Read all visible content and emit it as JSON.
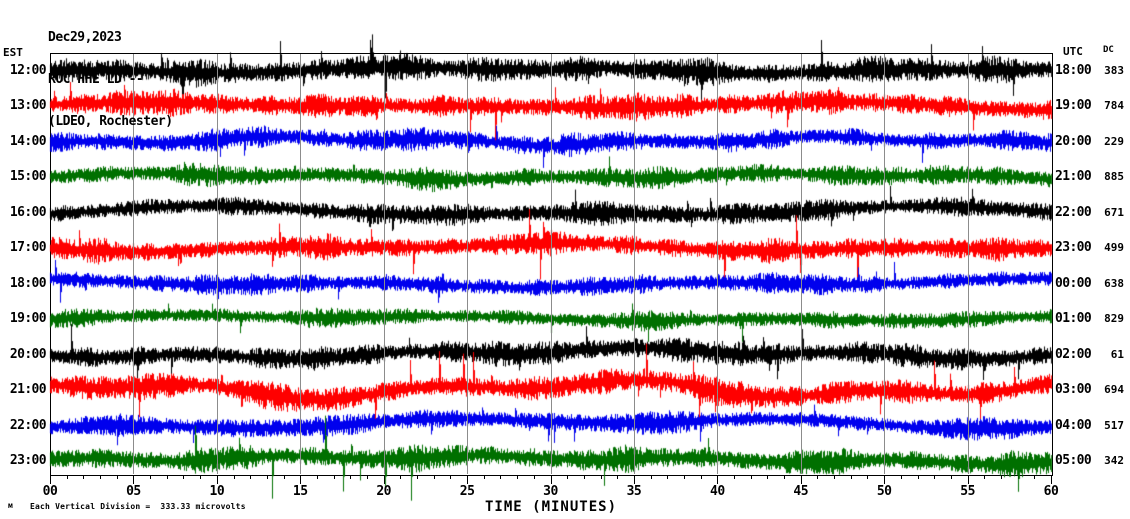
{
  "header": {
    "date": "Dec29,2023",
    "station": "ROC HHE LD --",
    "location": "(LDEO, Rochester)"
  },
  "left_axis": {
    "label": "EST"
  },
  "right_axis": {
    "label": "UTC",
    "dc_label": "DC"
  },
  "x_axis": {
    "title": "TIME (MINUTES)",
    "tick_labels": [
      "00",
      "05",
      "10",
      "15",
      "20",
      "25",
      "30",
      "35",
      "40",
      "45",
      "50",
      "55",
      "60"
    ],
    "minor_tick_every_min": 1,
    "major_tick_every_min": 5
  },
  "footer": {
    "caption": "Each Vertical Division =  333.33 microvolts",
    "corner_mark": "м"
  },
  "colors": {
    "black": "#000000",
    "red": "#ff0000",
    "blue": "#0000ee",
    "green": "#007000",
    "grid": "#8c8c8c",
    "frame": "#000000"
  },
  "chart_data": {
    "type": "line",
    "subtype": "seismogram-helicorder",
    "x_range_minutes": [
      0,
      60
    ],
    "grid_minutes": [
      5,
      10,
      15,
      20,
      25,
      30,
      35,
      40,
      45,
      50,
      55
    ],
    "vertical_division_microvolts": 333.33,
    "traces": [
      {
        "est": "12:00",
        "utc": "18:00",
        "dc": "383",
        "color": "black",
        "amp": 16,
        "spike_prob": 0.02,
        "spike_mag": 24,
        "wander": 3,
        "down_bias": 0.5,
        "seed": 11
      },
      {
        "est": "13:00",
        "utc": "19:00",
        "dc": "784",
        "color": "red",
        "amp": 15,
        "spike_prob": 0.014,
        "spike_mag": 20,
        "wander": 4,
        "down_bias": 0.5,
        "seed": 22
      },
      {
        "est": "14:00",
        "utc": "20:00",
        "dc": "229",
        "color": "blue",
        "amp": 13,
        "spike_prob": 0.01,
        "spike_mag": 15,
        "wander": 4,
        "down_bias": 0.5,
        "seed": 33
      },
      {
        "est": "15:00",
        "utc": "21:00",
        "dc": "885",
        "color": "green",
        "amp": 13,
        "spike_prob": 0.008,
        "spike_mag": 13,
        "wander": 3,
        "down_bias": 0.5,
        "seed": 44
      },
      {
        "est": "16:00",
        "utc": "22:00",
        "dc": "671",
        "color": "black",
        "amp": 13,
        "spike_prob": 0.01,
        "spike_mag": 16,
        "wander": 5,
        "down_bias": 0.5,
        "seed": 55
      },
      {
        "est": "17:00",
        "utc": "23:00",
        "dc": "499",
        "color": "red",
        "amp": 14,
        "spike_prob": 0.014,
        "spike_mag": 22,
        "wander": 4,
        "down_bias": 0.5,
        "seed": 66
      },
      {
        "est": "18:00",
        "utc": "00:00",
        "dc": "638",
        "color": "blue",
        "amp": 12,
        "spike_prob": 0.01,
        "spike_mag": 15,
        "wander": 4,
        "down_bias": 0.5,
        "seed": 77
      },
      {
        "est": "19:00",
        "utc": "01:00",
        "dc": "829",
        "color": "green",
        "amp": 11,
        "spike_prob": 0.008,
        "spike_mag": 13,
        "wander": 3,
        "down_bias": 0.5,
        "seed": 88
      },
      {
        "est": "20:00",
        "utc": "02:00",
        "dc": "61",
        "color": "black",
        "amp": 14,
        "spike_prob": 0.014,
        "spike_mag": 20,
        "wander": 5,
        "down_bias": 0.5,
        "seed": 99
      },
      {
        "est": "21:00",
        "utc": "03:00",
        "dc": "694",
        "color": "red",
        "amp": 16,
        "spike_prob": 0.016,
        "spike_mag": 22,
        "wander": 9,
        "down_bias": 0.5,
        "seed": 110
      },
      {
        "est": "22:00",
        "utc": "04:00",
        "dc": "517",
        "color": "blue",
        "amp": 13,
        "spike_prob": 0.01,
        "spike_mag": 16,
        "wander": 6,
        "down_bias": 0.5,
        "seed": 121
      },
      {
        "est": "23:00",
        "utc": "05:00",
        "dc": "342",
        "color": "green",
        "amp": 15,
        "spike_prob": 0.014,
        "spike_mag": 30,
        "wander": 4,
        "down_bias": 0.8,
        "seed": 132
      }
    ]
  }
}
